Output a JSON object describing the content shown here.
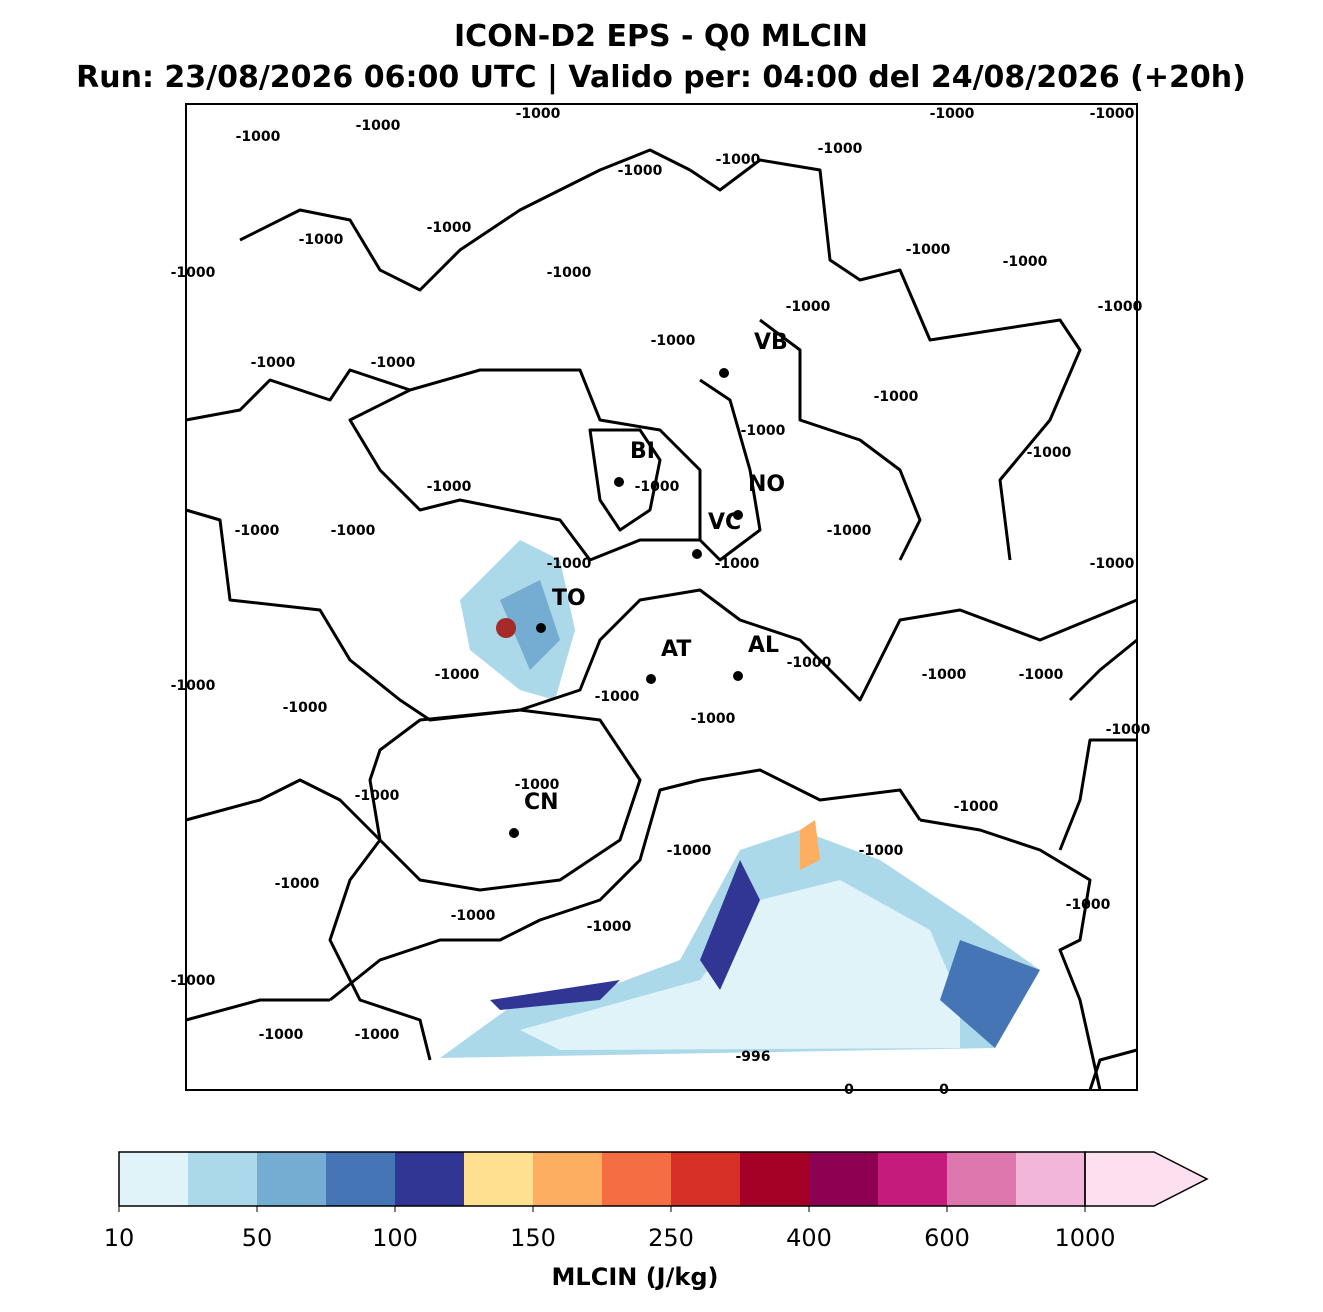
{
  "title": "ICON-D2 EPS - Q0 MLCIN",
  "subtitle": "Run: 23/08/2026 06:00 UTC | Valido per: 04:00 del 24/08/2026 (+20h)",
  "cities": [
    "VB",
    "BI",
    "NO",
    "VC",
    "TO",
    "AT",
    "AL",
    "CN"
  ],
  "contour_labels": [
    -1000,
    -1000,
    -1000,
    -1000,
    -1000,
    -1000,
    -1000,
    -1000,
    -1000,
    -1000,
    -1000,
    -1000,
    -1000,
    -1000,
    -1000,
    -1000,
    -1000,
    -1000,
    -1000,
    -1000,
    -1000,
    -1000,
    -1000,
    -1000,
    -1000,
    -1000,
    -1000,
    -1000,
    -1000,
    -1000,
    -1000,
    -1000,
    -1000,
    -1000,
    -1000,
    -1000,
    -1000,
    -1000,
    -1000,
    -1000,
    -1000,
    -1000,
    -1000,
    -1000,
    -1000,
    -1000,
    -1000,
    -1000,
    -1000,
    -1000,
    -1000,
    -996,
    0,
    0
  ],
  "colorbar": {
    "label": "MLCIN (J/kg)",
    "colors": [
      "#e0f3f8",
      "#abd9e9",
      "#74add1",
      "#4575b4",
      "#313695",
      "#fee090",
      "#fdae61",
      "#f46d43",
      "#d73027",
      "#a50026",
      "#8e0152",
      "#c51b7d",
      "#de77ae",
      "#f1b6da",
      "#fde0ef"
    ],
    "ticks": [
      10,
      50,
      100,
      150,
      250,
      400,
      600,
      1000
    ]
  }
}
